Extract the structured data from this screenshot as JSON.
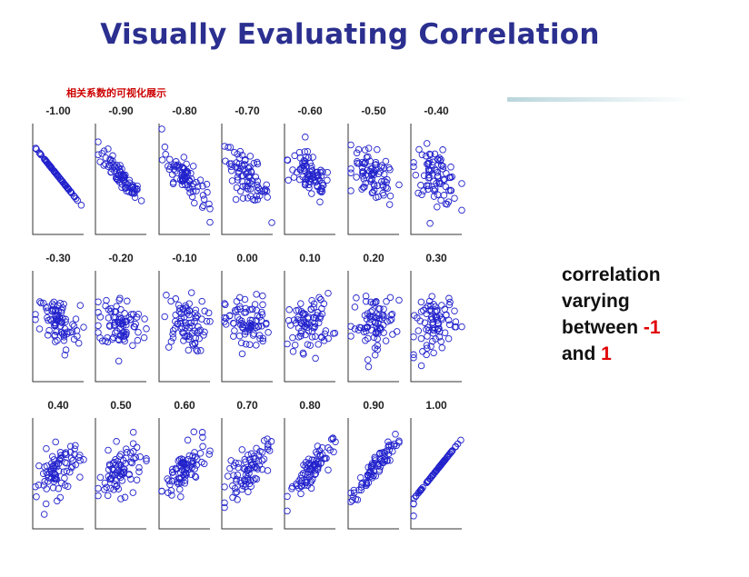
{
  "title": "Visually Evaluating Correlation",
  "subtitle_cn": "相关系数的可视化展示",
  "side_text": {
    "line1": "correlation",
    "line2": "varying",
    "line3_prefix": "between ",
    "line3_value": "-1",
    "line4_prefix": "and ",
    "line4_value": "1"
  },
  "colors": {
    "title": "#2b2f8f",
    "points": "#2222cc",
    "highlight": "#e00000",
    "cn_label": "#cc0000"
  },
  "chart_data": {
    "type": "scatter",
    "panels": [
      {
        "label": "-1.00",
        "r": -1.0
      },
      {
        "label": "-0.90",
        "r": -0.9
      },
      {
        "label": "-0.80",
        "r": -0.8
      },
      {
        "label": "-0.70",
        "r": -0.7
      },
      {
        "label": "-0.60",
        "r": -0.6
      },
      {
        "label": "-0.50",
        "r": -0.5
      },
      {
        "label": "-0.40",
        "r": -0.4
      },
      {
        "label": "-0.30",
        "r": -0.3
      },
      {
        "label": "-0.20",
        "r": -0.2
      },
      {
        "label": "-0.10",
        "r": -0.1
      },
      {
        "label": "0.00",
        "r": 0.0
      },
      {
        "label": "0.10",
        "r": 0.1
      },
      {
        "label": "0.20",
        "r": 0.2
      },
      {
        "label": "0.30",
        "r": 0.3
      },
      {
        "label": "0.40",
        "r": 0.4
      },
      {
        "label": "0.50",
        "r": 0.5
      },
      {
        "label": "0.60",
        "r": 0.6
      },
      {
        "label": "0.70",
        "r": 0.7
      },
      {
        "label": "0.80",
        "r": 0.8
      },
      {
        "label": "0.90",
        "r": 0.9
      },
      {
        "label": "1.00",
        "r": 1.0
      }
    ],
    "grid": false
  }
}
